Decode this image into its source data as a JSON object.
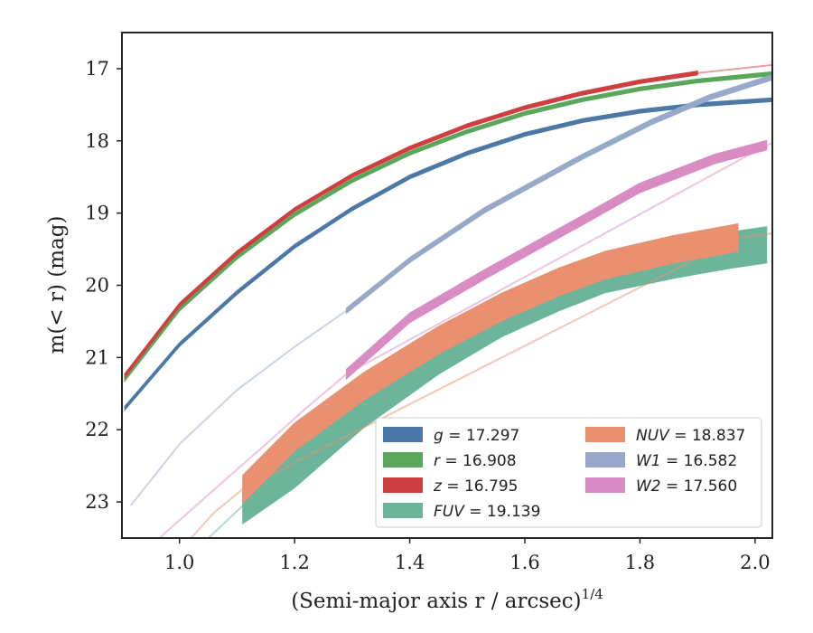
{
  "chart_data": {
    "type": "area",
    "title": "",
    "xlabel": "(Semi-major axis r / arcsec)",
    "xlabel_italic": "r",
    "xlabel_exponent": "1/4",
    "ylabel": "m(< r) (mag)",
    "xlim": [
      0.9,
      2.03
    ],
    "ylim": [
      23.5,
      16.5
    ],
    "y_inverted": true,
    "grid": false,
    "legend_position": "bottom-right",
    "x_ticks": [
      1.0,
      1.2,
      1.4,
      1.6,
      1.8,
      2.0
    ],
    "x_tick_labels": [
      "1.0",
      "1.2",
      "1.4",
      "1.6",
      "1.8",
      "2.0"
    ],
    "y_ticks": [
      17,
      18,
      19,
      20,
      21,
      22,
      23
    ],
    "y_tick_labels": [
      "17",
      "18",
      "19",
      "20",
      "21",
      "22",
      "23"
    ],
    "series": [
      {
        "name": "g = 17.297",
        "band": "g",
        "value": "17.297",
        "color": "#4c78a8",
        "solid": {
          "x": [
            0.905,
            1.0,
            1.1,
            1.2,
            1.3,
            1.4,
            1.5,
            1.6,
            1.7,
            1.8,
            1.9,
            2.03
          ],
          "y": [
            21.7,
            20.82,
            20.1,
            19.46,
            18.94,
            18.5,
            18.17,
            17.91,
            17.72,
            17.59,
            17.5,
            17.43
          ],
          "width": 0.05
        },
        "faded": {
          "x": [],
          "y": []
        }
      },
      {
        "name": "r = 16.908",
        "band": "r",
        "value": "16.908",
        "color": "#5aa65a",
        "solid": {
          "x": [
            0.905,
            1.0,
            1.1,
            1.2,
            1.3,
            1.4,
            1.5,
            1.6,
            1.7,
            1.8,
            1.9,
            2.03
          ],
          "y": [
            21.3,
            20.33,
            19.61,
            19.02,
            18.55,
            18.17,
            17.87,
            17.62,
            17.43,
            17.28,
            17.17,
            17.07
          ],
          "width": 0.05
        },
        "faded": {
          "x": [],
          "y": []
        }
      },
      {
        "name": "z = 16.795",
        "band": "z",
        "value": "16.795",
        "color": "#d03f3f",
        "solid": {
          "x": [
            0.905,
            1.0,
            1.1,
            1.2,
            1.3,
            1.4,
            1.5,
            1.6,
            1.7,
            1.8,
            1.9
          ],
          "y": [
            21.25,
            20.27,
            19.55,
            18.95,
            18.48,
            18.1,
            17.79,
            17.54,
            17.34,
            17.18,
            17.06
          ],
          "width": 0.05
        },
        "faded": {
          "x": [
            1.9,
            2.03
          ],
          "y": [
            17.06,
            16.95
          ]
        }
      },
      {
        "name": "FUV = 19.139",
        "band": "FUV",
        "value": "19.139",
        "color": "#6cb59b",
        "solid": {
          "x": [
            1.11,
            1.2,
            1.32,
            1.45,
            1.56,
            1.66,
            1.74,
            1.86,
            1.96,
            2.02
          ],
          "y": [
            23.05,
            22.55,
            21.72,
            20.98,
            20.46,
            20.1,
            19.85,
            19.65,
            19.51,
            19.44
          ],
          "width": 0.5
        },
        "faded": {
          "x": [
            1.05,
            1.11
          ],
          "y": [
            23.5,
            23.05
          ]
        }
      },
      {
        "name": "NUV = 18.837",
        "band": "NUV",
        "value": "18.837",
        "color": "#e8906f",
        "solid": {
          "x": [
            1.11,
            1.2,
            1.32,
            1.45,
            1.56,
            1.66,
            1.74,
            1.86,
            1.97
          ],
          "y": [
            22.82,
            22.1,
            21.4,
            20.76,
            20.3,
            19.95,
            19.72,
            19.5,
            19.34
          ],
          "width": 0.38
        },
        "faded": {
          "x": [
            1.02,
            1.06,
            1.11,
            1.97,
            2.03
          ],
          "y": [
            23.5,
            23.15,
            22.82,
            19.34,
            19.28
          ]
        }
      },
      {
        "name": "W1 = 16.582",
        "band": "W1",
        "value": "16.582",
        "color": "#97a8c8",
        "solid": {
          "x": [
            1.29,
            1.4,
            1.53,
            1.7,
            1.82,
            1.92,
            2.03
          ],
          "y": [
            20.35,
            19.65,
            18.96,
            18.22,
            17.74,
            17.4,
            17.12
          ],
          "width": 0.07
        },
        "faded": {
          "x": [
            0.915,
            1.0,
            1.1,
            1.2,
            1.29
          ],
          "y": [
            23.05,
            22.2,
            21.45,
            20.85,
            20.35
          ]
        }
      },
      {
        "name": "W2 = 17.560",
        "band": "W2",
        "value": "17.560",
        "color": "#d98cc4",
        "solid": {
          "x": [
            1.29,
            1.4,
            1.53,
            1.7,
            1.8,
            1.93,
            2.02
          ],
          "y": [
            21.23,
            20.45,
            19.85,
            19.1,
            18.65,
            18.25,
            18.06
          ],
          "width": 0.13
        },
        "faded": {
          "x": [
            0.965,
            1.05,
            1.15,
            1.22,
            1.29,
            2.02,
            2.03
          ],
          "y": [
            23.5,
            22.9,
            22.2,
            21.7,
            21.23,
            18.06,
            18.03
          ]
        }
      }
    ]
  }
}
